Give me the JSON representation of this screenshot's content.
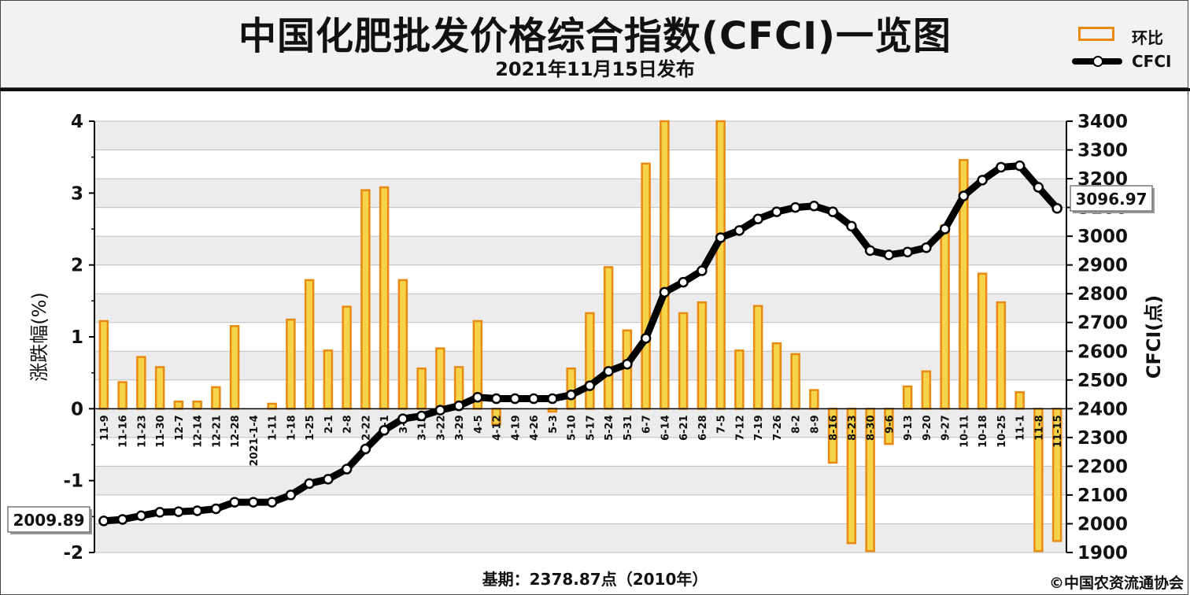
{
  "title": "中国化肥批发价格综合指数(CFCI)一览图",
  "subtitle": "2021年11月15日发布",
  "legend": {
    "bar_label": "环比",
    "line_label": "CFCI"
  },
  "footer": {
    "base_period": "基期：2378.87点（2010年）",
    "copyright": "©中国农资流通协会"
  },
  "colors": {
    "bar_fill": "#f6d44a",
    "bar_stroke": "#e88a12",
    "line": "#000000",
    "marker": "#ffffff",
    "plot_band": "#ececec",
    "grid": "#bfbfbf"
  },
  "chart_data": {
    "type": "bar",
    "combo": "bar+line",
    "categories": [
      "11-9",
      "11-16",
      "11-23",
      "11-30",
      "12-7",
      "12-14",
      "12-21",
      "12-28",
      "2021-1-4",
      "1-11",
      "1-18",
      "1-25",
      "2-1",
      "2-8",
      "2-22",
      "3-1",
      "3-8",
      "3-15",
      "3-22",
      "3-29",
      "4-5",
      "4-12",
      "4-19",
      "4-26",
      "5-3",
      "5-10",
      "5-17",
      "5-24",
      "5-31",
      "6-7",
      "6-14",
      "6-21",
      "6-28",
      "7-5",
      "7-12",
      "7-19",
      "7-26",
      "8-2",
      "8-9",
      "8-16",
      "8-23",
      "8-30",
      "9-6",
      "9-13",
      "9-20",
      "9-27",
      "10-11",
      "10-18",
      "10-25",
      "11-1",
      "11-8",
      "11-15"
    ],
    "series": [
      {
        "name": "环比",
        "type": "bar",
        "axis": "left",
        "values": [
          1.22,
          0.37,
          0.72,
          0.58,
          0.1,
          0.1,
          0.3,
          1.15,
          0.0,
          0.07,
          1.24,
          1.79,
          0.81,
          1.42,
          3.04,
          3.08,
          1.79,
          0.56,
          0.84,
          0.58,
          1.22,
          -0.22,
          0.0,
          0.0,
          -0.04,
          0.56,
          1.33,
          1.97,
          1.09,
          3.41,
          4.0,
          1.33,
          1.48,
          4.0,
          0.81,
          1.43,
          0.91,
          0.76,
          0.26,
          -0.75,
          -1.87,
          -1.98,
          -0.49,
          0.31,
          0.52,
          2.55,
          3.46,
          1.88,
          1.48,
          0.23,
          -1.98,
          -1.84
        ]
      },
      {
        "name": "CFCI",
        "type": "line",
        "axis": "right",
        "values": [
          2009.89,
          2015,
          2028,
          2040,
          2042,
          2045,
          2052,
          2075,
          2075,
          2075,
          2100,
          2140,
          2155,
          2190,
          2260,
          2325,
          2365,
          2375,
          2395,
          2410,
          2440,
          2435,
          2435,
          2435,
          2435,
          2448,
          2480,
          2530,
          2555,
          2645,
          2805,
          2840,
          2880,
          2995,
          3020,
          3060,
          3085,
          3100,
          3105,
          3085,
          3035,
          2950,
          2935,
          2945,
          2960,
          3025,
          3140,
          3195,
          3240,
          3245,
          3170,
          3096.97
        ]
      }
    ],
    "y_left": {
      "label": "涨跌幅(%)",
      "ticks": [
        "4",
        "3",
        "2",
        "1",
        "0",
        "-1",
        "-2"
      ],
      "range": [
        -2,
        4
      ]
    },
    "y_right": {
      "label": "CFCI(点)",
      "ticks": [
        "3400",
        "3300",
        "3200",
        "3100",
        "3000",
        "2900",
        "2800",
        "2700",
        "2600",
        "2500",
        "2400",
        "2300",
        "2200",
        "2100",
        "2000",
        "1900"
      ],
      "range": [
        1900,
        3400
      ]
    },
    "annotations": {
      "start_value": "2009.89",
      "end_value": "3096.97"
    },
    "grid": true,
    "legend_position": "top-right"
  }
}
